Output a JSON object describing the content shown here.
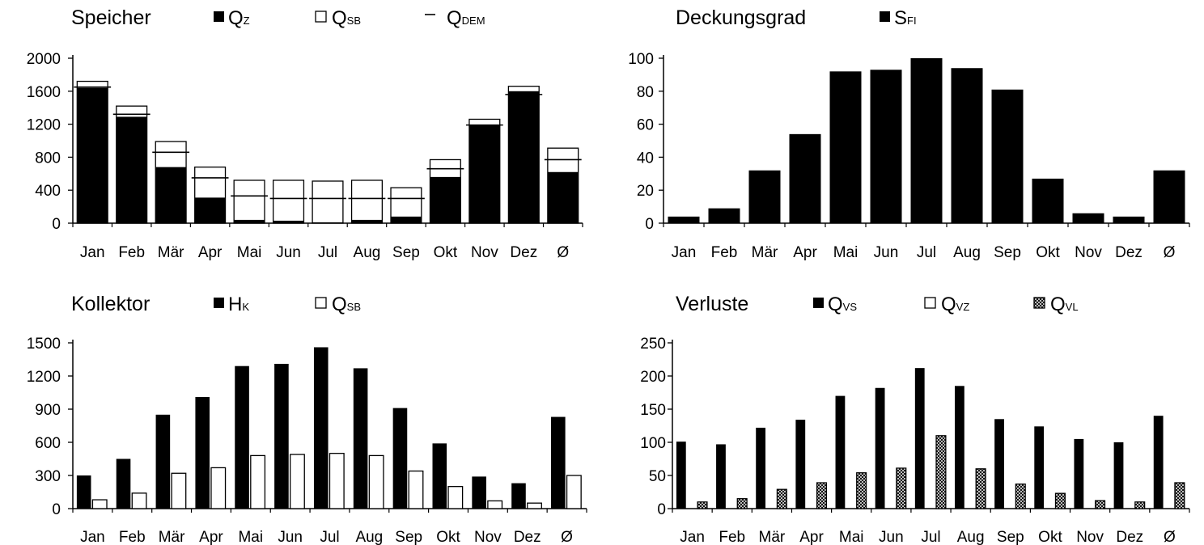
{
  "chart_data": [
    {
      "type": "bar",
      "title": "Speicher",
      "categories": [
        "Jan",
        "Feb",
        "Mär",
        "Apr",
        "Mai",
        "Jun",
        "Jul",
        "Aug",
        "Sep",
        "Okt",
        "Nov",
        "Dez",
        "Ø"
      ],
      "ylim": [
        0,
        2000
      ],
      "yticks": [
        "0",
        "400",
        "800",
        "1200",
        "1600",
        "2000"
      ],
      "legend_position": "top",
      "series": [
        {
          "name": "Q",
          "sub": "Z",
          "marker": "black-square",
          "style": "overlay-solid",
          "values": [
            1640,
            1290,
            680,
            310,
            40,
            30,
            10,
            40,
            80,
            560,
            1190,
            1600,
            620
          ]
        },
        {
          "name": "Q",
          "sub": "SB",
          "marker": "white-square",
          "style": "overlay-outline",
          "values": [
            1720,
            1420,
            990,
            680,
            520,
            520,
            510,
            520,
            430,
            770,
            1260,
            1660,
            910
          ]
        },
        {
          "name": "Q",
          "sub": "DEM",
          "marker": "dash",
          "style": "dash-line",
          "values": [
            1650,
            1320,
            860,
            550,
            330,
            300,
            300,
            300,
            300,
            660,
            1190,
            1560,
            770
          ]
        }
      ],
      "colors": {
        "solid": "#000000",
        "outline": "#000000",
        "fill": "#ffffff"
      }
    },
    {
      "type": "bar",
      "title": "Deckungsgrad",
      "categories": [
        "Jan",
        "Feb",
        "Mär",
        "Apr",
        "Mai",
        "Jun",
        "Jul",
        "Aug",
        "Sep",
        "Okt",
        "Nov",
        "Dez",
        "Ø"
      ],
      "ylim": [
        0,
        100
      ],
      "yticks": [
        "0",
        "20",
        "40",
        "60",
        "80",
        "100"
      ],
      "legend_position": "top",
      "series": [
        {
          "name": "S",
          "sub": "FI",
          "marker": "black-square",
          "style": "solid",
          "values": [
            4,
            9,
            32,
            54,
            92,
            93,
            100,
            94,
            81,
            27,
            6,
            4,
            32
          ]
        }
      ],
      "colors": {
        "solid": "#000000"
      }
    },
    {
      "type": "bar",
      "title": "Kollektor",
      "categories": [
        "Jan",
        "Feb",
        "Mär",
        "Apr",
        "Mai",
        "Jun",
        "Jul",
        "Aug",
        "Sep",
        "Okt",
        "Nov",
        "Dez",
        "Ø"
      ],
      "ylim": [
        0,
        1500
      ],
      "yticks": [
        "0",
        "300",
        "600",
        "900",
        "1200",
        "1500"
      ],
      "legend_position": "top",
      "series": [
        {
          "name": "H",
          "sub": "K",
          "marker": "black-square",
          "style": "solid",
          "values": [
            300,
            450,
            850,
            1010,
            1290,
            1310,
            1460,
            1270,
            910,
            590,
            290,
            230,
            830
          ]
        },
        {
          "name": "Q",
          "sub": "SB",
          "marker": "white-square",
          "style": "outline",
          "values": [
            80,
            140,
            320,
            370,
            480,
            490,
            500,
            480,
            340,
            200,
            70,
            50,
            300
          ]
        }
      ],
      "colors": {
        "solid": "#000000",
        "outline": "#000000",
        "fill": "#ffffff"
      }
    },
    {
      "type": "bar",
      "title": "Verluste",
      "categories": [
        "Jan",
        "Feb",
        "Mär",
        "Apr",
        "Mai",
        "Jun",
        "Jul",
        "Aug",
        "Sep",
        "Okt",
        "Nov",
        "Dez",
        "Ø"
      ],
      "ylim": [
        0,
        250
      ],
      "yticks": [
        "0",
        "50",
        "100",
        "150",
        "200",
        "250"
      ],
      "legend_position": "top",
      "series": [
        {
          "name": "Q",
          "sub": "VS",
          "marker": "black-square",
          "style": "solid",
          "values": [
            101,
            97,
            122,
            134,
            170,
            182,
            212,
            185,
            135,
            124,
            105,
            100,
            140
          ]
        },
        {
          "name": "Q",
          "sub": "VZ",
          "marker": "white-square",
          "style": "outline",
          "values": [
            0,
            0,
            0,
            0,
            0,
            0,
            0,
            0,
            0,
            0,
            0,
            0,
            0
          ]
        },
        {
          "name": "Q",
          "sub": "VL",
          "marker": "hatched-square",
          "style": "hatched",
          "values": [
            10,
            15,
            29,
            39,
            54,
            61,
            110,
            60,
            37,
            23,
            12,
            10,
            39
          ]
        }
      ],
      "colors": {
        "solid": "#000000",
        "outline": "#000000",
        "fill": "#ffffff"
      }
    }
  ]
}
